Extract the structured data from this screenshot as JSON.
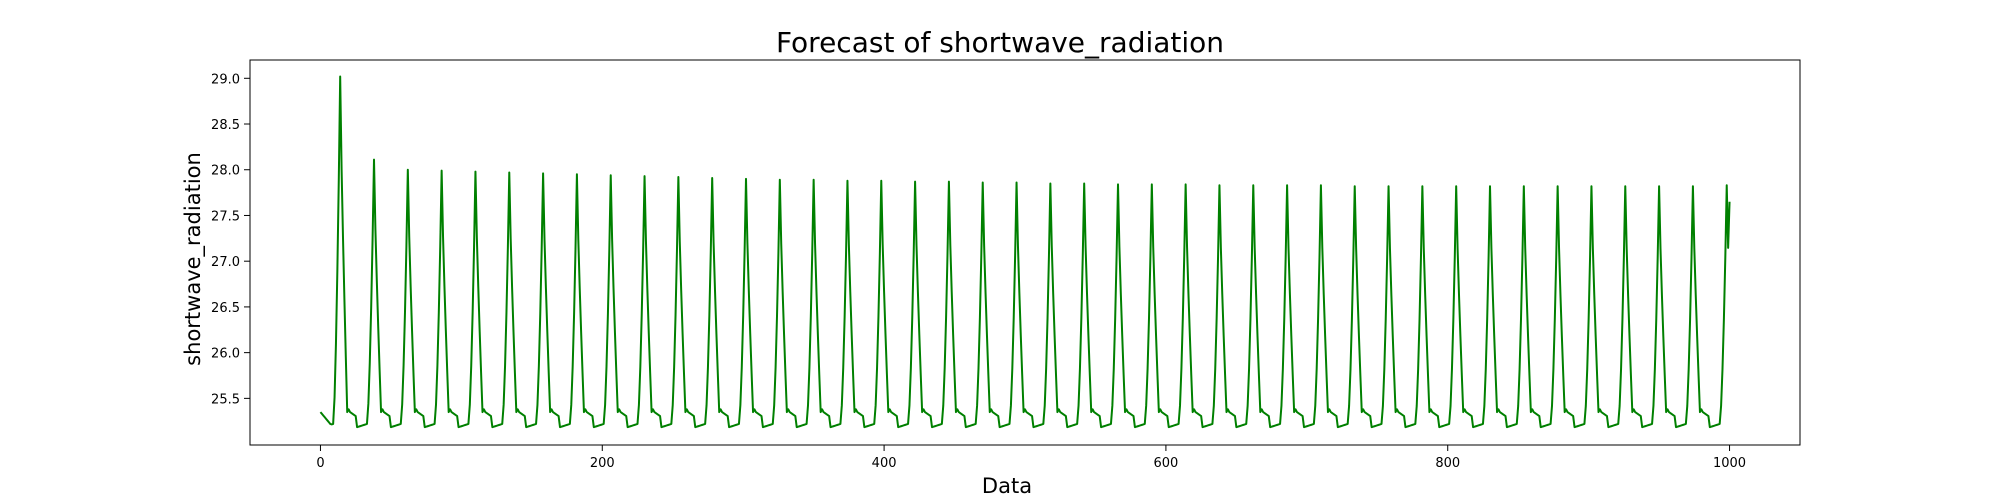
{
  "chart_data": {
    "type": "line",
    "title": "Forecast of shortwave_radiation",
    "xlabel": "Data",
    "ylabel": "shortwave_radiation",
    "xlim": [
      -50,
      1050
    ],
    "ylim": [
      24.99,
      29.2
    ],
    "xticks": [
      0,
      200,
      400,
      600,
      800,
      1000
    ],
    "xtick_labels": [
      "0",
      "200",
      "400",
      "600",
      "800",
      "1000"
    ],
    "yticks": [
      25.5,
      26.0,
      26.5,
      27.0,
      27.5,
      28.0,
      28.5,
      29.0
    ],
    "ytick_labels": [
      "25.5",
      "26.0",
      "26.5",
      "27.0",
      "27.5",
      "28.0",
      "28.5",
      "29.0"
    ],
    "grid": false,
    "legend": "none",
    "line_color": "#008000",
    "series": [
      {
        "period": 24,
        "x_start": 0,
        "x_end": 1000,
        "baseline": 25.35,
        "trough": 25.22,
        "first_peak": {
          "x": 14,
          "y": 29.02
        },
        "peaks": [
          {
            "x": 38,
            "y": 28.11
          },
          {
            "x": 62,
            "y": 28.0
          },
          {
            "x": 86,
            "y": 27.99
          },
          {
            "x": 110,
            "y": 27.98
          },
          {
            "x": 134,
            "y": 27.97
          },
          {
            "x": 158,
            "y": 27.96
          },
          {
            "x": 182,
            "y": 27.95
          },
          {
            "x": 206,
            "y": 27.94
          },
          {
            "x": 230,
            "y": 27.93
          },
          {
            "x": 254,
            "y": 27.92
          },
          {
            "x": 278,
            "y": 27.91
          },
          {
            "x": 302,
            "y": 27.9
          },
          {
            "x": 326,
            "y": 27.89
          },
          {
            "x": 350,
            "y": 27.89
          },
          {
            "x": 374,
            "y": 27.88
          },
          {
            "x": 398,
            "y": 27.88
          },
          {
            "x": 422,
            "y": 27.87
          },
          {
            "x": 446,
            "y": 27.87
          },
          {
            "x": 470,
            "y": 27.86
          },
          {
            "x": 494,
            "y": 27.86
          },
          {
            "x": 518,
            "y": 27.85
          },
          {
            "x": 542,
            "y": 27.85
          },
          {
            "x": 566,
            "y": 27.84
          },
          {
            "x": 590,
            "y": 27.84
          },
          {
            "x": 614,
            "y": 27.84
          },
          {
            "x": 638,
            "y": 27.83
          },
          {
            "x": 662,
            "y": 27.83
          },
          {
            "x": 686,
            "y": 27.83
          },
          {
            "x": 710,
            "y": 27.83
          },
          {
            "x": 734,
            "y": 27.82
          },
          {
            "x": 758,
            "y": 27.82
          },
          {
            "x": 782,
            "y": 27.82
          },
          {
            "x": 806,
            "y": 27.82
          },
          {
            "x": 830,
            "y": 27.82
          },
          {
            "x": 854,
            "y": 27.82
          },
          {
            "x": 878,
            "y": 27.82
          },
          {
            "x": 902,
            "y": 27.82
          },
          {
            "x": 926,
            "y": 27.82
          },
          {
            "x": 950,
            "y": 27.82
          },
          {
            "x": 974,
            "y": 27.82
          },
          {
            "x": 998,
            "y": 27.83
          }
        ],
        "last_value": {
          "x": 1000,
          "y": 27.65
        }
      }
    ]
  }
}
